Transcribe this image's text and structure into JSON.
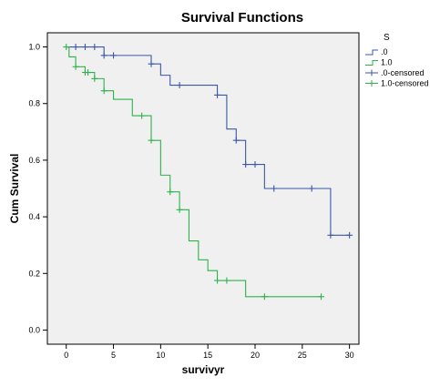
{
  "chart_data": {
    "type": "line",
    "title": "Survival Functions",
    "xlabel": "survivyr",
    "ylabel": "Cum Survival",
    "xlim": [
      -2,
      31
    ],
    "ylim": [
      -0.05,
      1.05
    ],
    "xticks": [
      0,
      5,
      10,
      15,
      20,
      25,
      30
    ],
    "xtick_labels": [
      "0",
      "5",
      "10",
      "15",
      "20",
      "25",
      "30"
    ],
    "yticks": [
      0.0,
      0.2,
      0.4,
      0.6,
      0.8,
      1.0
    ],
    "ytick_labels": [
      "0.0",
      "0.2",
      "0.4",
      "0.6",
      "0.8",
      "1.0"
    ],
    "grid": false,
    "plot_background": "#f0f0f0",
    "legend": {
      "title": "S",
      "placement": "right",
      "entries": [
        {
          "label": ".0",
          "kind": "line",
          "color": "#3a57a8"
        },
        {
          "label": "1.0",
          "kind": "line",
          "color": "#2db34a"
        },
        {
          "label": ".0-censored",
          "kind": "censor",
          "color": "#3a57a8"
        },
        {
          "label": "1.0-censored",
          "kind": "censor",
          "color": "#2db34a"
        }
      ]
    },
    "series": [
      {
        "name": ".0",
        "color": "#3a57a8",
        "steps": [
          [
            0,
            1.0
          ],
          [
            4,
            0.97
          ],
          [
            9,
            0.94
          ],
          [
            10,
            0.9
          ],
          [
            11,
            0.865
          ],
          [
            16,
            0.83
          ],
          [
            17,
            0.71
          ],
          [
            18,
            0.67
          ],
          [
            19,
            0.585
          ],
          [
            21,
            0.5
          ],
          [
            28,
            0.335
          ],
          [
            30,
            0.335
          ]
        ],
        "censored": [
          [
            1,
            1.0
          ],
          [
            2,
            1.0
          ],
          [
            3,
            1.0
          ],
          [
            4,
            0.97
          ],
          [
            5,
            0.97
          ],
          [
            9,
            0.94
          ],
          [
            12,
            0.865
          ],
          [
            16,
            0.83
          ],
          [
            18,
            0.67
          ],
          [
            19,
            0.585
          ],
          [
            20,
            0.585
          ],
          [
            22,
            0.5
          ],
          [
            26,
            0.5
          ],
          [
            28,
            0.335
          ],
          [
            30,
            0.335
          ]
        ]
      },
      {
        "name": "1.0",
        "color": "#2db34a",
        "steps": [
          [
            0,
            1.0
          ],
          [
            0.3,
            0.965
          ],
          [
            1,
            0.93
          ],
          [
            2,
            0.91
          ],
          [
            3,
            0.888
          ],
          [
            4,
            0.845
          ],
          [
            5,
            0.815
          ],
          [
            7,
            0.757
          ],
          [
            9,
            0.67
          ],
          [
            10,
            0.547
          ],
          [
            11,
            0.488
          ],
          [
            12,
            0.425
          ],
          [
            13,
            0.315
          ],
          [
            14,
            0.248
          ],
          [
            15,
            0.21
          ],
          [
            16,
            0.175
          ],
          [
            19,
            0.118
          ],
          [
            27,
            0.118
          ]
        ],
        "censored": [
          [
            0,
            1.0
          ],
          [
            1,
            0.93
          ],
          [
            2,
            0.91
          ],
          [
            2.3,
            0.91
          ],
          [
            3,
            0.888
          ],
          [
            4,
            0.845
          ],
          [
            8,
            0.757
          ],
          [
            9,
            0.67
          ],
          [
            11,
            0.488
          ],
          [
            12,
            0.425
          ],
          [
            16,
            0.175
          ],
          [
            17,
            0.175
          ],
          [
            21,
            0.118
          ],
          [
            27,
            0.118
          ]
        ]
      }
    ]
  }
}
